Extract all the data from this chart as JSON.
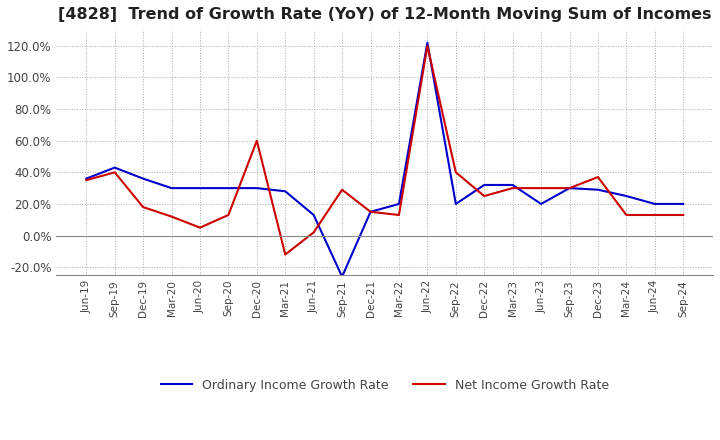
{
  "title": "[4828]  Trend of Growth Rate (YoY) of 12-Month Moving Sum of Incomes",
  "title_fontsize": 11.5,
  "ylim": [
    -25,
    130
  ],
  "yticks": [
    -20,
    0,
    20,
    40,
    60,
    80,
    100,
    120
  ],
  "background_color": "#ffffff",
  "plot_bg_color": "#ffffff",
  "grid_color": "#aaaaaa",
  "grid_style": ":",
  "ordinary_color": "#0000cc",
  "net_color": "#cc0000",
  "legend_labels": [
    "Ordinary Income Growth Rate",
    "Net Income Growth Rate"
  ],
  "x_labels": [
    "Jun-19",
    "Sep-19",
    "Dec-19",
    "Mar-20",
    "Jun-20",
    "Sep-20",
    "Dec-20",
    "Mar-21",
    "Jun-21",
    "Sep-21",
    "Dec-21",
    "Mar-22",
    "Jun-22",
    "Sep-22",
    "Dec-22",
    "Mar-23",
    "Jun-23",
    "Sep-23",
    "Dec-23",
    "Mar-24",
    "Jun-24",
    "Sep-24"
  ],
  "ordinary_income": [
    36,
    43,
    36,
    30,
    30,
    30,
    30,
    28,
    13,
    -26,
    15,
    20,
    122,
    20,
    32,
    32,
    20,
    30,
    29,
    25,
    20,
    20
  ],
  "net_income": [
    35,
    40,
    18,
    12,
    5,
    13,
    60,
    -12,
    2,
    29,
    15,
    13,
    120,
    40,
    25,
    30,
    30,
    30,
    37,
    13,
    13,
    13
  ]
}
